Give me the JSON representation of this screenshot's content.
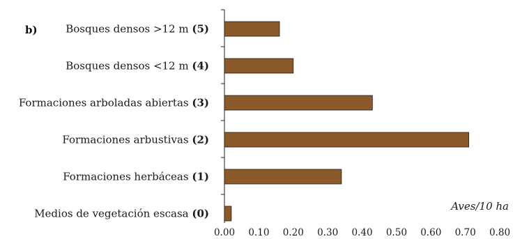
{
  "chart_data": {
    "type": "bar",
    "orientation": "horizontal",
    "panel_label": "b)",
    "unit_label": "Aves/10 ha",
    "categories": [
      {
        "name": "Bosques densos >12 m",
        "code": "(5)"
      },
      {
        "name": "Bosques densos <12 m",
        "code": "(4)"
      },
      {
        "name": "Formaciones arboladas abiertas",
        "code": "(3)"
      },
      {
        "name": "Formaciones arbustivas",
        "code": "(2)"
      },
      {
        "name": "Formaciones herbáceas",
        "code": "(1)"
      },
      {
        "name": "Medios de vegetación escasa",
        "code": "(0)"
      }
    ],
    "values": [
      0.16,
      0.2,
      0.43,
      0.71,
      0.34,
      0.02
    ],
    "xlim": [
      0,
      0.8
    ],
    "xticks": [
      "0.00",
      "0.10",
      "0.20",
      "0.30",
      "0.40",
      "0.50",
      "0.60",
      "0.70",
      "0.80"
    ],
    "bar_color": "#8b5a2b",
    "grid": false
  }
}
